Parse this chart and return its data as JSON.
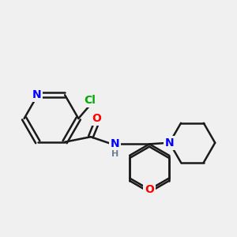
{
  "background_color": "#f0f0f0",
  "bond_color": "#1a1a1a",
  "bond_width": 1.8,
  "atom_colors": {
    "N": "#0000ff",
    "O": "#ff0000",
    "Cl": "#00aa00",
    "C": "#1a1a1a",
    "H": "#708090"
  },
  "font_size_atom": 10,
  "font_size_h": 8
}
